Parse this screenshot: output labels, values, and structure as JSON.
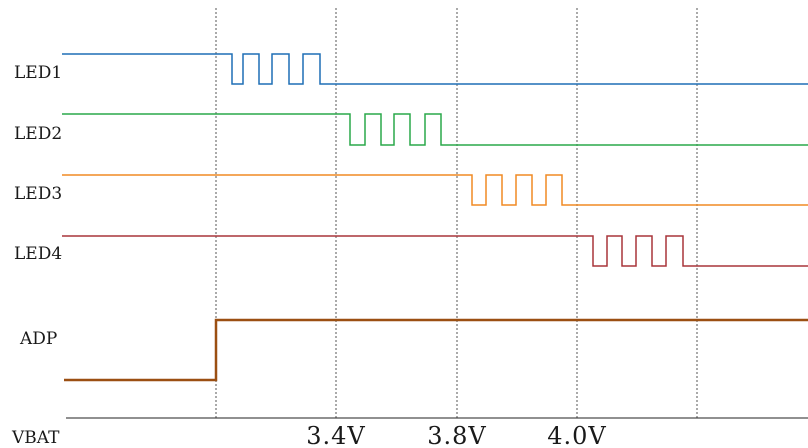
{
  "signals": [
    {
      "id": "led1",
      "label": "LED1",
      "color": "#1f6fb5"
    },
    {
      "id": "led2",
      "label": "LED2",
      "color": "#2aa84a"
    },
    {
      "id": "led3",
      "label": "LED3",
      "color": "#f08a24"
    },
    {
      "id": "led4",
      "label": "LED4",
      "color": "#a8353a"
    },
    {
      "id": "adp",
      "label": "ADP",
      "color": "#9b4f12"
    }
  ],
  "axis": {
    "label": "VBAT",
    "ticks": [
      "3.4V",
      "3.8V",
      "4.0V"
    ]
  }
}
